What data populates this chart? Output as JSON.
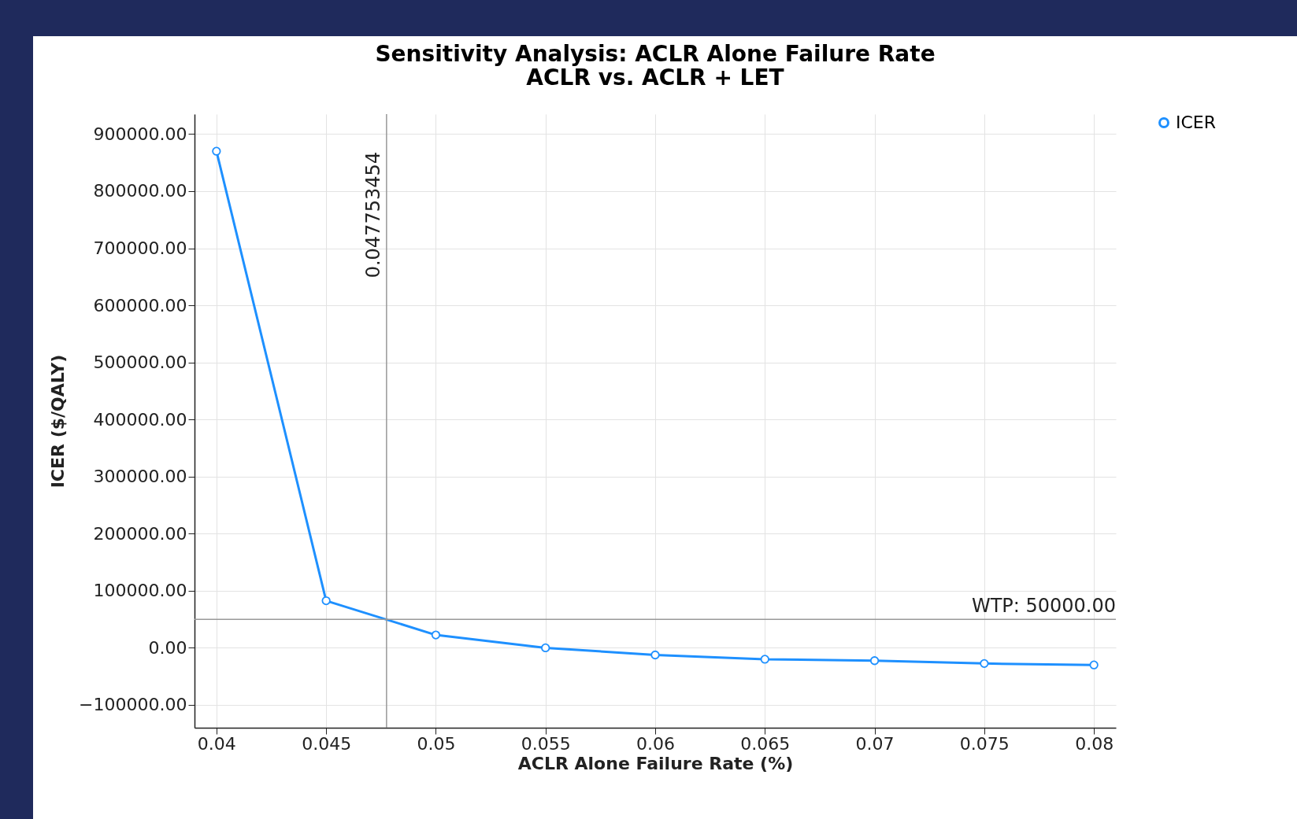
{
  "chart_data": {
    "type": "line",
    "title": "Sensitivity Analysis: ACLR Alone Failure Rate",
    "subtitle": "ACLR vs. ACLR + LET",
    "xlabel": "ACLR Alone Failure Rate (%)",
    "ylabel": "ICER ($/QALY)",
    "x": [
      0.04,
      0.045,
      0.05,
      0.055,
      0.06,
      0.065,
      0.07,
      0.075,
      0.08
    ],
    "series": [
      {
        "name": "ICER",
        "color": "#1e90ff",
        "values": [
          870000,
          82500,
          22500,
          0,
          -12500,
          -20000,
          -22500,
          -27500,
          -30000
        ]
      }
    ],
    "xlim": [
      0.039,
      0.081
    ],
    "xticks": [
      0.04,
      0.045,
      0.05,
      0.055,
      0.06,
      0.065,
      0.07,
      0.075,
      0.08
    ],
    "ylim": [
      -140000,
      935000
    ],
    "yticks": [
      {
        "value": -100000,
        "label": "−100000.00"
      },
      {
        "value": 0,
        "label": "0.00"
      },
      {
        "value": 100000,
        "label": "100000.00"
      },
      {
        "value": 200000,
        "label": "200000.00"
      },
      {
        "value": 300000,
        "label": "300000.00"
      },
      {
        "value": 400000,
        "label": "400000.00"
      },
      {
        "value": 500000,
        "label": "500000.00"
      },
      {
        "value": 600000,
        "label": "600000.00"
      },
      {
        "value": 700000,
        "label": "700000.00"
      },
      {
        "value": 800000,
        "label": "800000.00"
      },
      {
        "value": 900000,
        "label": "900000.00"
      }
    ],
    "ref_lines": [
      {
        "axis": "x",
        "value": 0.047753454,
        "label": "0.047753454",
        "color": "#999999"
      },
      {
        "axis": "y",
        "value": 50000,
        "label": "WTP: 50000.00",
        "color": "#999999"
      }
    ],
    "grid": true,
    "legend": "top right",
    "marker": "circle",
    "line_style": "solid"
  }
}
